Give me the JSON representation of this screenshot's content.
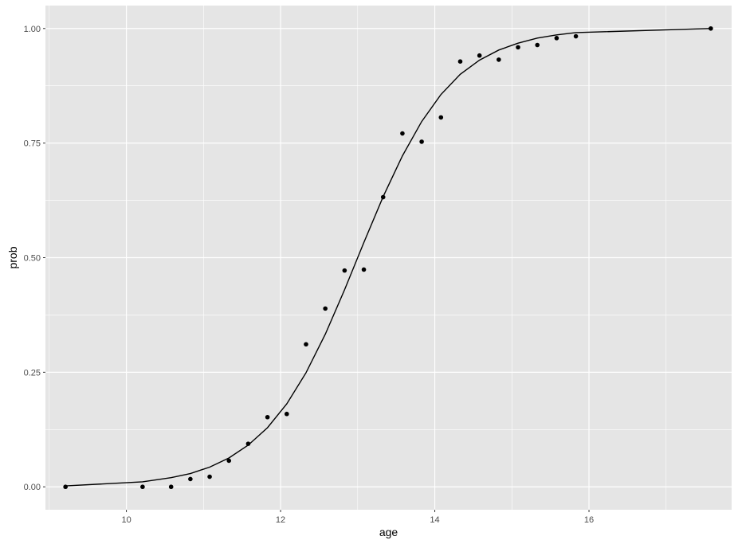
{
  "chart_data": {
    "type": "scatter",
    "title": "",
    "xlabel": "age",
    "ylabel": "prob",
    "xlim": [
      8.95,
      17.85
    ],
    "ylim": [
      -0.05,
      1.05
    ],
    "x_ticks": [
      10,
      12,
      14,
      16
    ],
    "x_tick_labels": [
      "10",
      "12",
      "14",
      "16"
    ],
    "x_minor_ticks": [
      9,
      11,
      13,
      15,
      17
    ],
    "y_ticks": [
      0,
      0.25,
      0.5,
      0.75,
      1
    ],
    "y_tick_labels": [
      "0.00",
      "0.25",
      "0.50",
      "0.75",
      "1.00"
    ],
    "y_minor_ticks": [
      0.125,
      0.375,
      0.625,
      0.875
    ],
    "grid": true,
    "legend": "none",
    "colors": {
      "panel": "#e5e5e5",
      "grid": "#ffffff",
      "points": "#000000",
      "line": "#000000"
    },
    "points": {
      "x": [
        9.21,
        10.21,
        10.58,
        10.83,
        11.08,
        11.33,
        11.58,
        11.83,
        12.08,
        12.33,
        12.58,
        12.83,
        13.08,
        13.33,
        13.58,
        13.83,
        14.08,
        14.33,
        14.58,
        14.83,
        15.08,
        15.33,
        15.58,
        15.83,
        17.58
      ],
      "y": [
        0.0,
        0.0,
        0.0,
        0.017,
        0.022,
        0.057,
        0.094,
        0.152,
        0.159,
        0.311,
        0.389,
        0.472,
        0.474,
        0.632,
        0.771,
        0.753,
        0.806,
        0.928,
        0.941,
        0.932,
        0.959,
        0.964,
        0.979,
        0.983,
        1.0
      ]
    },
    "fitted": {
      "x": [
        9.21,
        10.21,
        10.58,
        10.83,
        11.08,
        11.33,
        11.58,
        11.83,
        12.08,
        12.33,
        12.58,
        12.83,
        13.08,
        13.33,
        13.58,
        13.83,
        14.08,
        14.33,
        14.58,
        14.83,
        15.08,
        15.33,
        15.58,
        15.83,
        17.58
      ],
      "y": [
        0.002,
        0.011,
        0.02,
        0.029,
        0.043,
        0.063,
        0.091,
        0.129,
        0.181,
        0.249,
        0.333,
        0.43,
        0.533,
        0.633,
        0.722,
        0.797,
        0.856,
        0.9,
        0.931,
        0.953,
        0.968,
        0.979,
        0.986,
        0.991,
        1.0
      ]
    }
  }
}
